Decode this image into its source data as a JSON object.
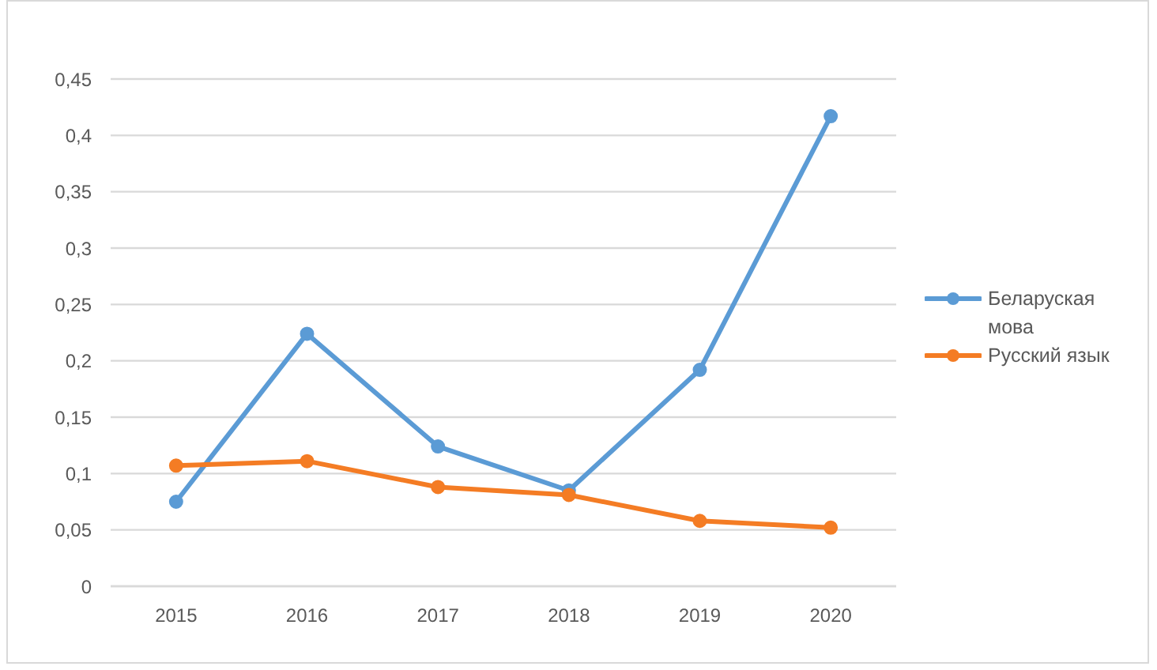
{
  "chart_data": {
    "type": "line",
    "categories": [
      "2015",
      "2016",
      "2017",
      "2018",
      "2019",
      "2020"
    ],
    "series": [
      {
        "name": "Беларуская мова",
        "color": "#5b9bd5",
        "values": [
          0.075,
          0.224,
          0.124,
          0.085,
          0.192,
          0.417
        ]
      },
      {
        "name": "Русский язык",
        "color": "#f47c24",
        "values": [
          0.107,
          0.111,
          0.088,
          0.081,
          0.058,
          0.052
        ]
      }
    ],
    "ylim": [
      0,
      0.45
    ],
    "yticks": [
      0,
      {
        "value": 0.05,
        "label": "0,05"
      },
      {
        "value": 0.1,
        "label": "0,1"
      },
      {
        "value": 0.15,
        "label": "0,15"
      },
      {
        "value": 0.2,
        "label": "0,2"
      },
      {
        "value": 0.25,
        "label": "0,25"
      },
      {
        "value": 0.3,
        "label": "0,3"
      },
      {
        "value": 0.35,
        "label": "0,35"
      },
      {
        "value": 0.4,
        "label": "0,4"
      },
      {
        "value": 0.45,
        "label": "0,45"
      }
    ],
    "grid": "y",
    "legend": "right",
    "marker": "circle",
    "line_style": "solid"
  }
}
